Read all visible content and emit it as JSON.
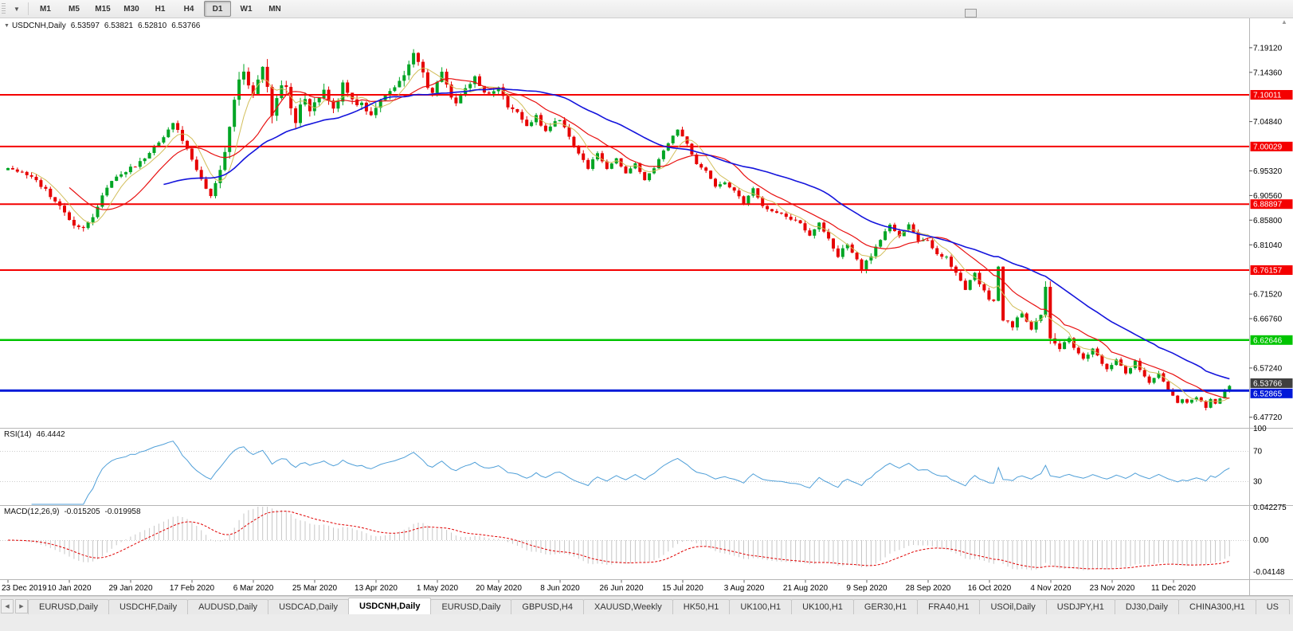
{
  "toolbar": {
    "timeframes": [
      "M1",
      "M5",
      "M15",
      "M30",
      "H1",
      "H4",
      "D1",
      "W1",
      "MN"
    ],
    "active": "D1"
  },
  "chart_header": {
    "symbol": "USDCNH,Daily",
    "open": "6.53597",
    "high": "6.53821",
    "low": "6.52810",
    "close": "6.53766"
  },
  "rsi_panel": {
    "label": "RSI(14)",
    "value": "46.4442",
    "axis_labels": [
      "100",
      "70",
      "30"
    ]
  },
  "macd_panel": {
    "label": "MACD(12,26,9)",
    "value1": "-0.015205",
    "value2": "-0.019958",
    "axis_labels": [
      "0.042275",
      "0.00",
      "-0.04148"
    ]
  },
  "tabs": {
    "items": [
      "EURUSD,Daily",
      "USDCHF,Daily",
      "AUDUSD,Daily",
      "USDCAD,Daily",
      "USDCNH,Daily",
      "EURUSD,Daily",
      "GBPUSD,H4",
      "XAUUSD,Weekly",
      "HK50,H1",
      "UK100,H1",
      "UK100,H1",
      "GER30,H1",
      "FRA40,H1",
      "USOil,Daily",
      "USDJPY,H1",
      "DJ30,Daily",
      "CHINA300,H1",
      "US"
    ],
    "active_index": 4
  },
  "chart_data": {
    "type": "candlestick",
    "symbol": "USDCNH",
    "timeframe": "Daily",
    "ohlc_current": {
      "open": 6.53597,
      "high": 6.53821,
      "low": 6.5281,
      "close": 6.53766
    },
    "y_scale": {
      "top_price": 7.2464,
      "bottom_price": 6.4583
    },
    "y_axis_labels": [
      "7.19120",
      "7.14360",
      "7.09600",
      "7.04840",
      "7.00080",
      "6.95320",
      "6.90560",
      "6.85800",
      "6.81040",
      "6.76280",
      "6.71520",
      "6.66760",
      "6.62000",
      "6.57240",
      "6.52480",
      "6.47720"
    ],
    "x_axis_dates": [
      "23 Dec 2019",
      "10 Jan 2020",
      "29 Jan 2020",
      "17 Feb 2020",
      "6 Mar 2020",
      "25 Mar 2020",
      "13 Apr 2020",
      "1 May 2020",
      "20 May 2020",
      "8 Jun 2020",
      "26 Jun 2020",
      "15 Jul 2020",
      "3 Aug 2020",
      "21 Aug 2020",
      "9 Sep 2020",
      "28 Sep 2020",
      "16 Oct 2020",
      "4 Nov 2020",
      "23 Nov 2020",
      "11 Dec 2020"
    ],
    "levels": [
      {
        "label": "7.10011",
        "value": 7.10011,
        "color": "#F40000",
        "width": 2
      },
      {
        "label": "7.00029",
        "value": 7.00029,
        "color": "#F40000",
        "width": 2
      },
      {
        "label": "6.88897",
        "value": 6.88897,
        "color": "#F40000",
        "width": 2
      },
      {
        "label": "6.76157",
        "value": 6.76157,
        "color": "#F40000",
        "width": 2
      },
      {
        "label": "6.62646",
        "value": 6.62646,
        "color": "#00C400",
        "width": 2.5
      },
      {
        "label": "6.52865",
        "value": 6.52865,
        "color": "#0018D8",
        "width": 3
      }
    ],
    "current_price": {
      "label": "6.53766",
      "value": 6.53766,
      "bg": "#3f3f3f"
    },
    "candle_colors": {
      "up": "#00A524",
      "down": "#E60000"
    },
    "moving_averages": [
      {
        "period": 6,
        "color": "#D2BE5A",
        "width": 1
      },
      {
        "period": 14,
        "color": "#E81010",
        "width": 1.2
      },
      {
        "period": 34,
        "color": "#1414DC",
        "width": 1.6
      }
    ],
    "rsi": {
      "period": 14,
      "current": 46.4442,
      "color": "#4F9FD8",
      "level_lines": [
        70,
        30
      ]
    },
    "macd": {
      "fast": 12,
      "slow": 26,
      "signal": 9,
      "macd_current": -0.015205,
      "signal_current": -0.019958,
      "histogram_color": "#C6C6C6",
      "signal_color": "#E00000",
      "axis_values": [
        0.042275,
        0,
        -0.04148
      ]
    },
    "series_approx": {
      "num_candles": 260,
      "close_path": [
        [
          0,
          6.96
        ],
        [
          2,
          6.953
        ],
        [
          4,
          6.944
        ],
        [
          6,
          6.934
        ],
        [
          8,
          6.916
        ],
        [
          10,
          6.896
        ],
        [
          12,
          6.872
        ],
        [
          14,
          6.851
        ],
        [
          16,
          6.843
        ],
        [
          18,
          6.866
        ],
        [
          20,
          6.908
        ],
        [
          23,
          6.944
        ],
        [
          26,
          6.958
        ],
        [
          28,
          6.97
        ],
        [
          30,
          6.986
        ],
        [
          32,
          7.008
        ],
        [
          34,
          7.034
        ],
        [
          35,
          7.044
        ],
        [
          37,
          7.014
        ],
        [
          39,
          6.976
        ],
        [
          41,
          6.936
        ],
        [
          43,
          6.908
        ],
        [
          45,
          6.956
        ],
        [
          46,
          6.992
        ],
        [
          47,
          7.04
        ],
        [
          48,
          7.092
        ],
        [
          49,
          7.128
        ],
        [
          50,
          7.148
        ],
        [
          51,
          7.118
        ],
        [
          52,
          7.1
        ],
        [
          53,
          7.128
        ],
        [
          54,
          7.148
        ],
        [
          55,
          7.112
        ],
        [
          56,
          7.066
        ],
        [
          57,
          7.092
        ],
        [
          58,
          7.118
        ],
        [
          59,
          7.108
        ],
        [
          60,
          7.076
        ],
        [
          61,
          7.052
        ],
        [
          62,
          7.076
        ],
        [
          63,
          7.086
        ],
        [
          64,
          7.064
        ],
        [
          65,
          7.082
        ],
        [
          66,
          7.096
        ],
        [
          67,
          7.106
        ],
        [
          68,
          7.086
        ],
        [
          69,
          7.07
        ],
        [
          70,
          7.092
        ],
        [
          71,
          7.126
        ],
        [
          72,
          7.104
        ],
        [
          73,
          7.088
        ],
        [
          74,
          7.076
        ],
        [
          75,
          7.086
        ],
        [
          76,
          7.068
        ],
        [
          77,
          7.058
        ],
        [
          78,
          7.076
        ],
        [
          80,
          7.104
        ],
        [
          82,
          7.112
        ],
        [
          84,
          7.14
        ],
        [
          86,
          7.176
        ],
        [
          87,
          7.164
        ],
        [
          88,
          7.144
        ],
        [
          89,
          7.118
        ],
        [
          90,
          7.1
        ],
        [
          91,
          7.126
        ],
        [
          92,
          7.144
        ],
        [
          93,
          7.118
        ],
        [
          95,
          7.08
        ],
        [
          97,
          7.112
        ],
        [
          99,
          7.136
        ],
        [
          101,
          7.106
        ],
        [
          103,
          7.104
        ],
        [
          104,
          7.116
        ],
        [
          106,
          7.076
        ],
        [
          108,
          7.068
        ],
        [
          110,
          7.04
        ],
        [
          112,
          7.058
        ],
        [
          114,
          7.03
        ],
        [
          116,
          7.048
        ],
        [
          117,
          7.054
        ],
        [
          119,
          7.02
        ],
        [
          121,
          6.986
        ],
        [
          123,
          6.96
        ],
        [
          125,
          6.986
        ],
        [
          127,
          6.956
        ],
        [
          129,
          6.976
        ],
        [
          131,
          6.946
        ],
        [
          133,
          6.966
        ],
        [
          135,
          6.936
        ],
        [
          137,
          6.958
        ],
        [
          139,
          6.99
        ],
        [
          141,
          7.02
        ],
        [
          142,
          7.034
        ],
        [
          144,
          7.004
        ],
        [
          146,
          6.964
        ],
        [
          148,
          6.952
        ],
        [
          150,
          6.92
        ],
        [
          152,
          6.932
        ],
        [
          154,
          6.916
        ],
        [
          156,
          6.89
        ],
        [
          158,
          6.918
        ],
        [
          160,
          6.886
        ],
        [
          162,
          6.876
        ],
        [
          164,
          6.868
        ],
        [
          166,
          6.86
        ],
        [
          168,
          6.854
        ],
        [
          170,
          6.826
        ],
        [
          172,
          6.854
        ],
        [
          174,
          6.82
        ],
        [
          176,
          6.788
        ],
        [
          178,
          6.814
        ],
        [
          180,
          6.78
        ],
        [
          181,
          6.766
        ],
        [
          183,
          6.792
        ],
        [
          185,
          6.82
        ],
        [
          187,
          6.85
        ],
        [
          189,
          6.826
        ],
        [
          191,
          6.848
        ],
        [
          193,
          6.82
        ],
        [
          195,
          6.82
        ],
        [
          197,
          6.79
        ],
        [
          199,
          6.786
        ],
        [
          201,
          6.756
        ],
        [
          203,
          6.726
        ],
        [
          205,
          6.754
        ],
        [
          207,
          6.72
        ],
        [
          208,
          6.702
        ],
        [
          209,
          6.7
        ],
        [
          210,
          6.772
        ],
        [
          211,
          6.668
        ],
        [
          212,
          6.664
        ],
        [
          213,
          6.652
        ],
        [
          214,
          6.668
        ],
        [
          215,
          6.68
        ],
        [
          216,
          6.664
        ],
        [
          217,
          6.648
        ],
        [
          218,
          6.662
        ],
        [
          219,
          6.672
        ],
        [
          220,
          6.734
        ],
        [
          221,
          6.634
        ],
        [
          222,
          6.618
        ],
        [
          223,
          6.606
        ],
        [
          224,
          6.62
        ],
        [
          225,
          6.632
        ],
        [
          226,
          6.614
        ],
        [
          227,
          6.598
        ],
        [
          228,
          6.588
        ],
        [
          229,
          6.6
        ],
        [
          230,
          6.61
        ],
        [
          231,
          6.594
        ],
        [
          232,
          6.578
        ],
        [
          233,
          6.568
        ],
        [
          234,
          6.58
        ],
        [
          235,
          6.59
        ],
        [
          236,
          6.576
        ],
        [
          237,
          6.564
        ],
        [
          238,
          6.574
        ],
        [
          239,
          6.584
        ],
        [
          240,
          6.57
        ],
        [
          241,
          6.556
        ],
        [
          242,
          6.544
        ],
        [
          243,
          6.554
        ],
        [
          244,
          6.564
        ],
        [
          245,
          6.548
        ],
        [
          246,
          6.532
        ],
        [
          247,
          6.518
        ],
        [
          248,
          6.506
        ],
        [
          249,
          6.514
        ],
        [
          250,
          6.504
        ],
        [
          251,
          6.511
        ],
        [
          252,
          6.518
        ],
        [
          253,
          6.506
        ],
        [
          254,
          6.497
        ],
        [
          255,
          6.51
        ],
        [
          256,
          6.505
        ],
        [
          257,
          6.514
        ],
        [
          258,
          6.527
        ],
        [
          259,
          6.53766
        ]
      ],
      "volatility_path": [
        [
          0,
          0.01
        ],
        [
          12,
          0.014
        ],
        [
          20,
          0.01
        ],
        [
          34,
          0.013
        ],
        [
          43,
          0.013
        ],
        [
          47,
          0.022
        ],
        [
          52,
          0.03
        ],
        [
          60,
          0.024
        ],
        [
          70,
          0.018
        ],
        [
          80,
          0.016
        ],
        [
          86,
          0.02
        ],
        [
          90,
          0.016
        ],
        [
          100,
          0.013
        ],
        [
          110,
          0.012
        ],
        [
          120,
          0.011
        ],
        [
          130,
          0.009
        ],
        [
          142,
          0.01
        ],
        [
          156,
          0.009
        ],
        [
          170,
          0.01
        ],
        [
          181,
          0.013
        ],
        [
          190,
          0.009
        ],
        [
          200,
          0.01
        ],
        [
          208,
          0.01
        ],
        [
          210,
          0.02
        ],
        [
          212,
          0.01
        ],
        [
          219,
          0.01
        ],
        [
          220,
          0.022
        ],
        [
          221,
          0.024
        ],
        [
          223,
          0.01
        ],
        [
          234,
          0.009
        ],
        [
          247,
          0.008
        ],
        [
          254,
          0.009
        ],
        [
          259,
          0.006
        ]
      ]
    }
  }
}
